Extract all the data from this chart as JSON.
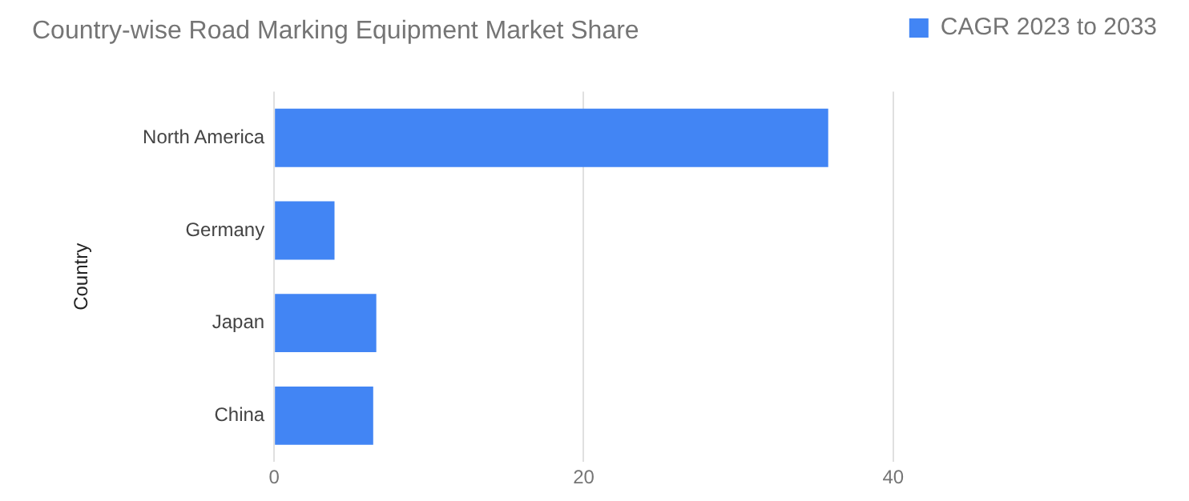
{
  "chart_data": {
    "type": "bar",
    "orientation": "horizontal",
    "title": "Country-wise Road Marking Equipment Market Share",
    "ylabel": "Country",
    "categories": [
      "North America",
      "Germany",
      "Japan",
      "China"
    ],
    "series": [
      {
        "name": "CAGR 2023 to 2033",
        "color": "#4285f4",
        "values": [
          35.8,
          3.9,
          6.6,
          6.4
        ]
      }
    ],
    "xlim": [
      0,
      40
    ],
    "xticks": [
      0,
      20,
      40
    ],
    "grid": "x",
    "legend": "top right"
  }
}
